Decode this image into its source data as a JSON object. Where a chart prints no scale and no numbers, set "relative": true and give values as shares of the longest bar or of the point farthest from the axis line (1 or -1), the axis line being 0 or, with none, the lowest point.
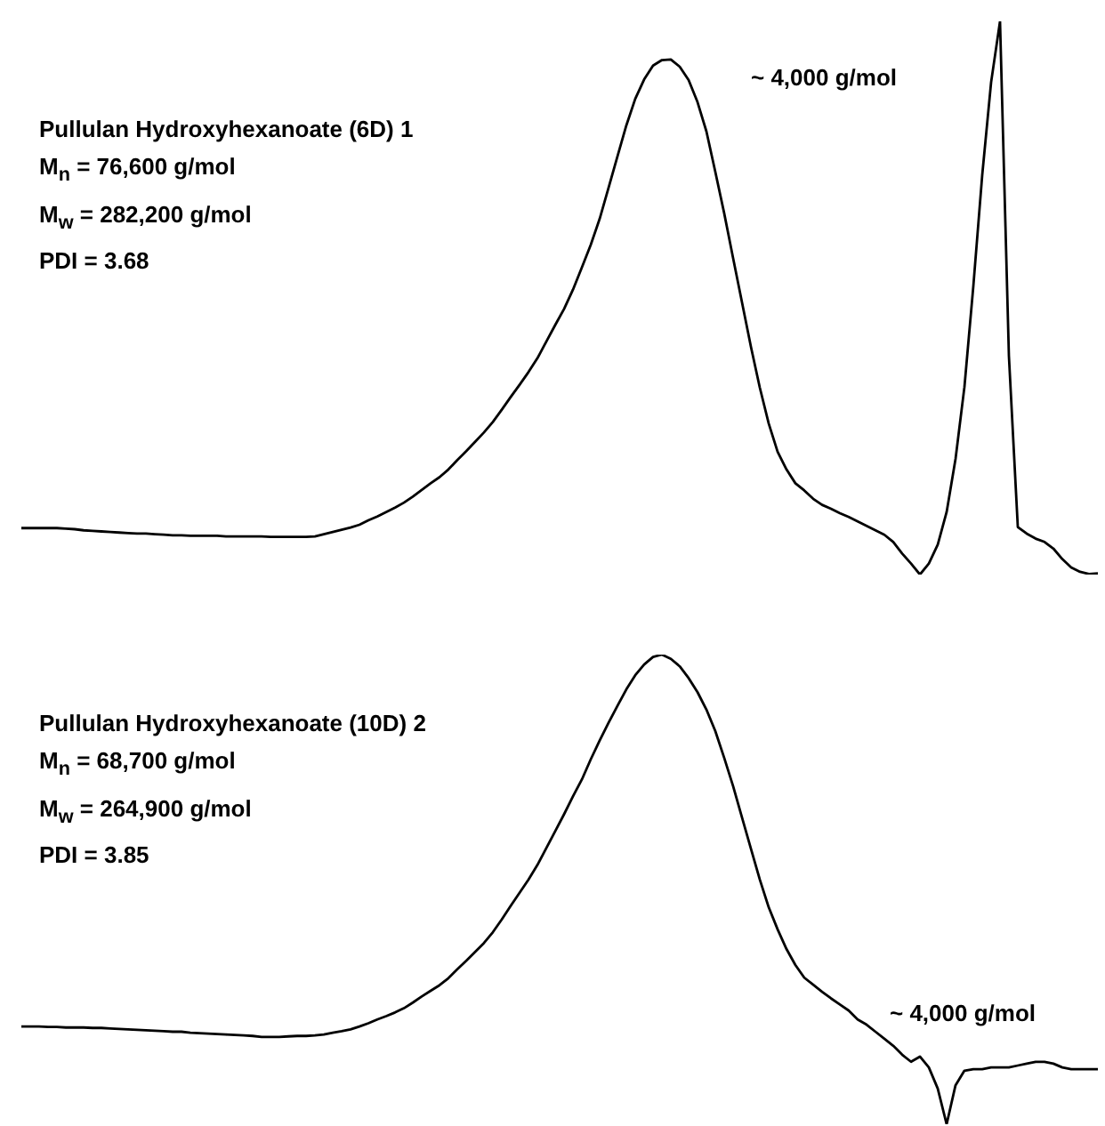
{
  "chart_data": [
    {
      "type": "line",
      "relative": true,
      "title": "Pullulan Hydroxyhexanoate (6D) 1",
      "annotations": [
        "M$_{n}$ = 76,600 g/mol",
        "M$_{w}$ = 282,200 g/mol",
        "PDI = 3.68",
        "~ 4,000 g/mol"
      ],
      "categories": [
        null,
        null,
        null,
        null,
        null,
        null,
        null,
        null,
        null,
        null,
        null,
        null,
        null,
        null,
        null,
        null,
        null,
        null,
        null,
        null,
        null,
        null,
        null,
        null,
        null,
        null,
        null,
        null,
        null,
        null,
        null,
        null,
        null,
        null,
        null,
        null,
        null,
        null,
        null,
        null,
        null,
        null,
        null,
        null,
        null,
        null,
        null,
        null,
        null,
        null,
        null,
        null,
        null,
        null,
        null,
        null,
        null,
        null,
        null,
        null,
        null,
        null,
        null,
        null,
        null,
        null,
        null,
        null,
        null,
        null,
        null,
        null,
        null,
        null,
        null,
        null,
        null,
        null,
        null,
        null,
        null,
        null,
        null,
        null,
        null,
        null,
        null,
        null,
        null,
        null,
        null,
        null,
        null,
        null,
        null,
        null,
        null,
        null,
        null,
        null,
        null,
        null,
        null,
        null,
        null,
        null,
        null,
        null,
        null,
        null,
        null,
        null,
        null,
        null,
        null,
        null,
        null,
        null,
        null,
        null,
        null,
        null
      ],
      "series": [
        {
          "color": "#000000",
          "values": [
            0.084,
            0.084,
            0.084,
            0.084,
            0.084,
            0.083,
            0.082,
            0.08,
            0.079,
            0.078,
            0.077,
            0.076,
            0.075,
            0.074,
            0.074,
            0.073,
            0.072,
            0.071,
            0.071,
            0.07,
            0.07,
            0.07,
            0.07,
            0.069,
            0.069,
            0.069,
            0.069,
            0.069,
            0.068,
            0.068,
            0.068,
            0.068,
            0.068,
            0.069,
            0.073,
            0.077,
            0.081,
            0.085,
            0.09,
            0.098,
            0.105,
            0.113,
            0.121,
            0.13,
            0.141,
            0.153,
            0.165,
            0.176,
            0.19,
            0.207,
            0.223,
            0.24,
            0.257,
            0.276,
            0.298,
            0.321,
            0.343,
            0.366,
            0.391,
            0.421,
            0.451,
            0.48,
            0.515,
            0.555,
            0.596,
            0.643,
            0.699,
            0.756,
            0.812,
            0.86,
            0.895,
            0.92,
            0.93,
            0.931,
            0.918,
            0.894,
            0.854,
            0.801,
            0.728,
            0.653,
            0.572,
            0.492,
            0.412,
            0.338,
            0.273,
            0.222,
            0.19,
            0.165,
            0.152,
            0.137,
            0.126,
            0.119,
            0.111,
            0.104,
            0.096,
            0.088,
            0.08,
            0.072,
            0.059,
            0.038,
            0.02,
            0,
            0.02,
            0.054,
            0.113,
            0.209,
            0.339,
            0.521,
            0.722,
            0.89,
            1,
            0.395,
            0.086,
            0.074,
            0.065,
            0.059,
            0.047,
            0.028,
            0.013,
            0.005,
            0.001,
            0.002
          ]
        }
      ]
    },
    {
      "type": "line",
      "relative": true,
      "title": "Pullulan Hydroxyhexanoate (10D) 2",
      "annotations": [
        "M$_{n}$ = 68,700 g/mol",
        "M$_{w}$ = 264,900 g/mol",
        "PDI = 3.85",
        "~ 4,000 g/mol"
      ],
      "categories": [
        null,
        null,
        null,
        null,
        null,
        null,
        null,
        null,
        null,
        null,
        null,
        null,
        null,
        null,
        null,
        null,
        null,
        null,
        null,
        null,
        null,
        null,
        null,
        null,
        null,
        null,
        null,
        null,
        null,
        null,
        null,
        null,
        null,
        null,
        null,
        null,
        null,
        null,
        null,
        null,
        null,
        null,
        null,
        null,
        null,
        null,
        null,
        null,
        null,
        null,
        null,
        null,
        null,
        null,
        null,
        null,
        null,
        null,
        null,
        null,
        null,
        null,
        null,
        null,
        null,
        null,
        null,
        null,
        null,
        null,
        null,
        null,
        null,
        null,
        null,
        null,
        null,
        null,
        null,
        null,
        null,
        null,
        null,
        null,
        null,
        null,
        null,
        null,
        null,
        null,
        null,
        null,
        null,
        null,
        null,
        null,
        null,
        null,
        null,
        null,
        null,
        null,
        null,
        null,
        null,
        null,
        null,
        null,
        null,
        null,
        null,
        null,
        null,
        null,
        null,
        null,
        null,
        null,
        null,
        null,
        null,
        null
      ],
      "series": [
        {
          "color": "#000000",
          "values": [
            0.208,
            0.208,
            0.208,
            0.207,
            0.207,
            0.206,
            0.206,
            0.206,
            0.205,
            0.205,
            0.204,
            0.203,
            0.202,
            0.201,
            0.2,
            0.199,
            0.198,
            0.197,
            0.197,
            0.195,
            0.194,
            0.193,
            0.192,
            0.191,
            0.19,
            0.189,
            0.188,
            0.186,
            0.186,
            0.186,
            0.187,
            0.188,
            0.188,
            0.189,
            0.191,
            0.195,
            0.198,
            0.202,
            0.208,
            0.215,
            0.223,
            0.23,
            0.238,
            0.247,
            0.259,
            0.272,
            0.284,
            0.296,
            0.311,
            0.33,
            0.348,
            0.367,
            0.386,
            0.409,
            0.436,
            0.465,
            0.493,
            0.521,
            0.552,
            0.588,
            0.624,
            0.66,
            0.698,
            0.734,
            0.777,
            0.817,
            0.855,
            0.891,
            0.926,
            0.956,
            0.979,
            0.995,
            1,
            0.991,
            0.975,
            0.95,
            0.92,
            0.883,
            0.837,
            0.78,
            0.72,
            0.653,
            0.587,
            0.521,
            0.462,
            0.415,
            0.373,
            0.339,
            0.312,
            0.297,
            0.282,
            0.268,
            0.255,
            0.242,
            0.223,
            0.212,
            0.197,
            0.182,
            0.167,
            0.148,
            0.133,
            0.144,
            0.121,
            0.076,
            0,
            0.083,
            0.114,
            0.117,
            0.117,
            0.121,
            0.121,
            0.121,
            0.125,
            0.129,
            0.133,
            0.133,
            0.129,
            0.121,
            0.117,
            0.117,
            0.117,
            0.117
          ]
        }
      ]
    }
  ]
}
